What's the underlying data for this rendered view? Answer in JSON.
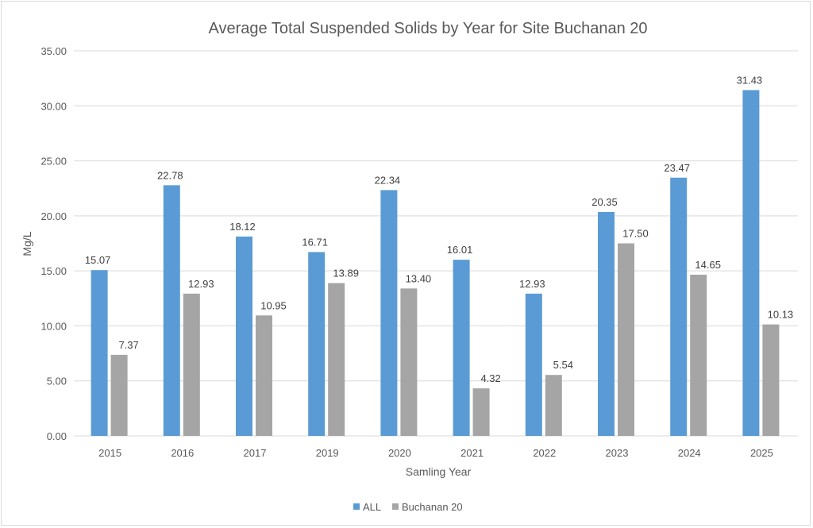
{
  "chart_data": {
    "type": "bar",
    "title": "Average Total Suspended Solids by Year for Site Buchanan 20",
    "xlabel": "Samling Year",
    "ylabel": "Mg/L",
    "categories": [
      "2015",
      "2016",
      "2017",
      "2019",
      "2020",
      "2021",
      "2022",
      "2023",
      "2024",
      "2025"
    ],
    "series": [
      {
        "name": "ALL",
        "color": "#5b9bd5",
        "values": [
          15.07,
          22.78,
          18.12,
          16.71,
          22.34,
          16.01,
          12.93,
          20.35,
          23.47,
          31.43
        ]
      },
      {
        "name": "Buchanan 20",
        "color": "#a5a5a5",
        "values": [
          7.37,
          12.93,
          10.95,
          13.89,
          13.4,
          4.32,
          5.54,
          17.5,
          14.65,
          10.13
        ]
      }
    ],
    "ylim": [
      0,
      35
    ],
    "ytick_labels": [
      "0.00",
      "5.00",
      "10.00",
      "15.00",
      "20.00",
      "25.00",
      "30.00",
      "35.00"
    ],
    "grid": true,
    "legend_position": "bottom",
    "data_labels": true
  }
}
